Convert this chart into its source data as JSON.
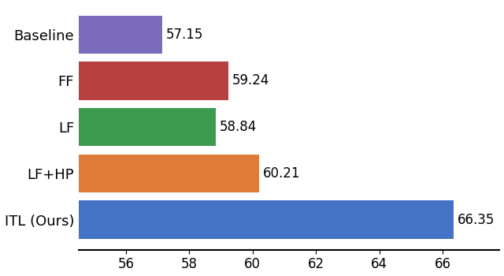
{
  "categories": [
    "ITL (Ours)",
    "LF+HP",
    "LF",
    "FF",
    "Baseline"
  ],
  "values": [
    66.35,
    60.21,
    58.84,
    59.24,
    57.15
  ],
  "colors": [
    "#4472C4",
    "#E07B39",
    "#3C9B4E",
    "#B84040",
    "#7B6BBB"
  ],
  "value_labels": [
    "66.35",
    "60.21",
    "58.84",
    "59.24",
    "57.15"
  ],
  "xlim_min": 54.5,
  "xlim_max": 67.8,
  "xticks": [
    56,
    58,
    60,
    62,
    64,
    66
  ],
  "bar_height": 0.82,
  "fontsize_labels": 13,
  "fontsize_ticks": 12,
  "fontsize_values": 12,
  "background_color": "#ffffff"
}
